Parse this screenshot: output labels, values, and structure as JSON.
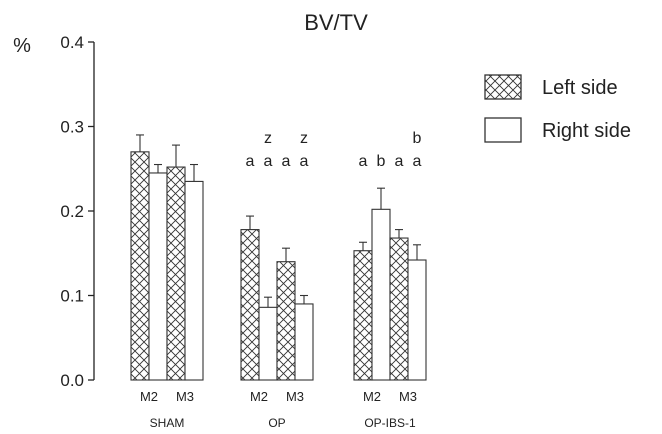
{
  "chart_data": {
    "type": "bar",
    "title": "BV/TV",
    "ylabel": "%",
    "ylim": [
      0,
      0.4
    ],
    "yticks": [
      "0.0",
      "0.1",
      "0.2",
      "0.3",
      "0.4"
    ],
    "groups": [
      "SHAM",
      "OP",
      "OP-IBS-1"
    ],
    "subgroups": [
      "M2",
      "M3"
    ],
    "series": [
      {
        "name": "Left side",
        "pattern": "crosshatch"
      },
      {
        "name": "Right side",
        "pattern": "plain"
      }
    ],
    "bars": [
      {
        "group": "SHAM",
        "sub": "M2",
        "side": "Left side",
        "value": 0.27,
        "error": 0.02,
        "letters": []
      },
      {
        "group": "SHAM",
        "sub": "M2",
        "side": "Right side",
        "value": 0.245,
        "error": 0.01,
        "letters": []
      },
      {
        "group": "SHAM",
        "sub": "M3",
        "side": "Left side",
        "value": 0.252,
        "error": 0.026,
        "letters": []
      },
      {
        "group": "SHAM",
        "sub": "M3",
        "side": "Right side",
        "value": 0.235,
        "error": 0.02,
        "letters": []
      },
      {
        "group": "OP",
        "sub": "M2",
        "side": "Left side",
        "value": 0.178,
        "error": 0.016,
        "letters": [
          "a"
        ]
      },
      {
        "group": "OP",
        "sub": "M2",
        "side": "Right side",
        "value": 0.086,
        "error": 0.012,
        "letters": [
          "a",
          "z"
        ]
      },
      {
        "group": "OP",
        "sub": "M3",
        "side": "Left side",
        "value": 0.14,
        "error": 0.016,
        "letters": [
          "a"
        ]
      },
      {
        "group": "OP",
        "sub": "M3",
        "side": "Right side",
        "value": 0.09,
        "error": 0.01,
        "letters": [
          "a",
          "z"
        ]
      },
      {
        "group": "OP-IBS-1",
        "sub": "M2",
        "side": "Left side",
        "value": 0.153,
        "error": 0.01,
        "letters": [
          "a"
        ]
      },
      {
        "group": "OP-IBS-1",
        "sub": "M2",
        "side": "Right side",
        "value": 0.202,
        "error": 0.025,
        "letters": [
          "b"
        ]
      },
      {
        "group": "OP-IBS-1",
        "sub": "M3",
        "side": "Left side",
        "value": 0.168,
        "error": 0.01,
        "letters": [
          "a"
        ]
      },
      {
        "group": "OP-IBS-1",
        "sub": "M3",
        "side": "Right side",
        "value": 0.142,
        "error": 0.018,
        "letters": [
          "a",
          "b"
        ]
      }
    ],
    "legend_position": "right",
    "grid": false
  }
}
